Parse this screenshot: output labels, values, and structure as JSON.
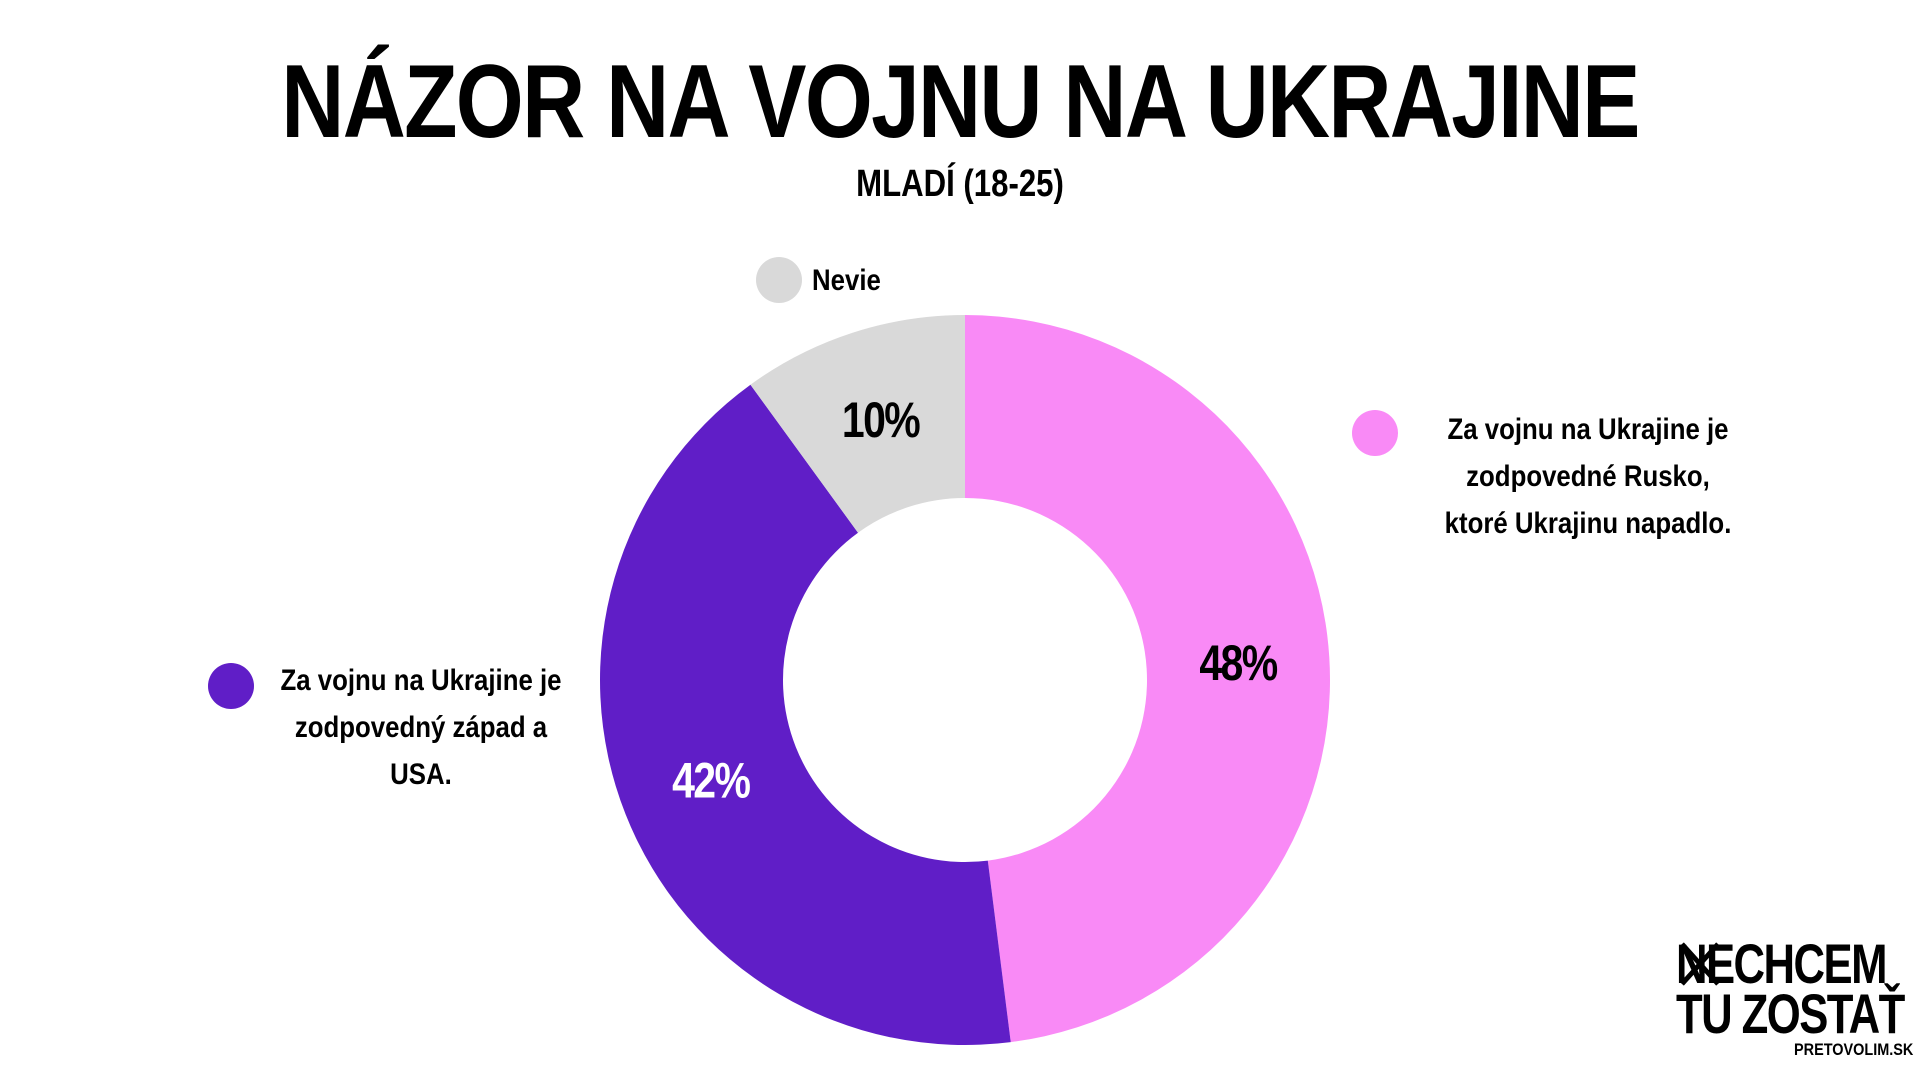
{
  "title": "NÁZOR NA VOJNU NA UKRAJINE",
  "subtitle": "MLADÍ (18-25)",
  "chart_data": {
    "type": "donut",
    "title": "NÁZOR NA VOJNU NA UKRAJINE",
    "subtitle": "MLADÍ (18-25)",
    "slices": [
      {
        "label": "Za vojnu na Ukrajine je\nzodpovedné Rusko,\nktoré Ukrajinu napadlo.",
        "value": 48,
        "value_label": "48%",
        "color": "#f98af6",
        "label_color": "#000000"
      },
      {
        "label": "Za vojnu na Ukrajine je\nzodpovedný západ a USA.",
        "value": 42,
        "value_label": "42%",
        "color": "#601ec7",
        "label_color": "#ffffff"
      },
      {
        "label": "Nevie",
        "value": 10,
        "value_label": "10%",
        "color": "#d9d9d9",
        "label_color": "#000000"
      }
    ]
  },
  "logo": {
    "line1": "NECHCEM",
    "line2": "TU ZOSTAŤ",
    "site": "PRETOVOLIM.SK"
  }
}
